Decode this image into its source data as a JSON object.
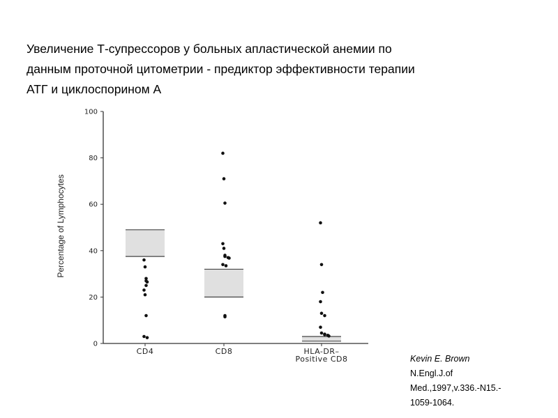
{
  "slide": {
    "title_lines": [
      "Увеличение Т-супрессоров у больных апластической анемии по",
      "данным проточной цитометрии - предиктор эффективности терапии",
      "АТГ и циклоспорином А"
    ],
    "citation_lines": [
      "Kevin E. Brown",
      "N.Engl.J.of",
      "Med.,1997,v.336.-N15.-",
      "1059-1064."
    ]
  },
  "chart_data": {
    "type": "scatter",
    "ylabel": "Percentage of Lymphocytes",
    "ylim": [
      0,
      100
    ],
    "yticks": [
      "0",
      "20",
      "40",
      "60",
      "80",
      "100"
    ],
    "categories": [
      {
        "label_lines": [
          "CD4"
        ],
        "values": [
          36,
          33,
          28,
          27,
          26.5,
          25,
          23,
          21,
          12,
          3,
          2.5
        ],
        "range": [
          37.5,
          49
        ]
      },
      {
        "label_lines": [
          "CD8"
        ],
        "values": [
          82,
          71,
          60.5,
          43,
          41,
          38,
          37.5,
          37,
          36.8,
          34,
          33.5,
          12,
          11.5
        ],
        "range": [
          20,
          32
        ]
      },
      {
        "label_lines": [
          "HLA-DR–",
          "Positive CD8"
        ],
        "values": [
          52,
          34,
          22,
          18,
          13,
          12,
          7,
          4.5,
          4,
          3.8,
          3.5,
          3.2
        ],
        "range": [
          1,
          3
        ]
      }
    ],
    "colors": {
      "box": "#e0e0e0",
      "line": "#444444",
      "point": "#111111"
    }
  }
}
